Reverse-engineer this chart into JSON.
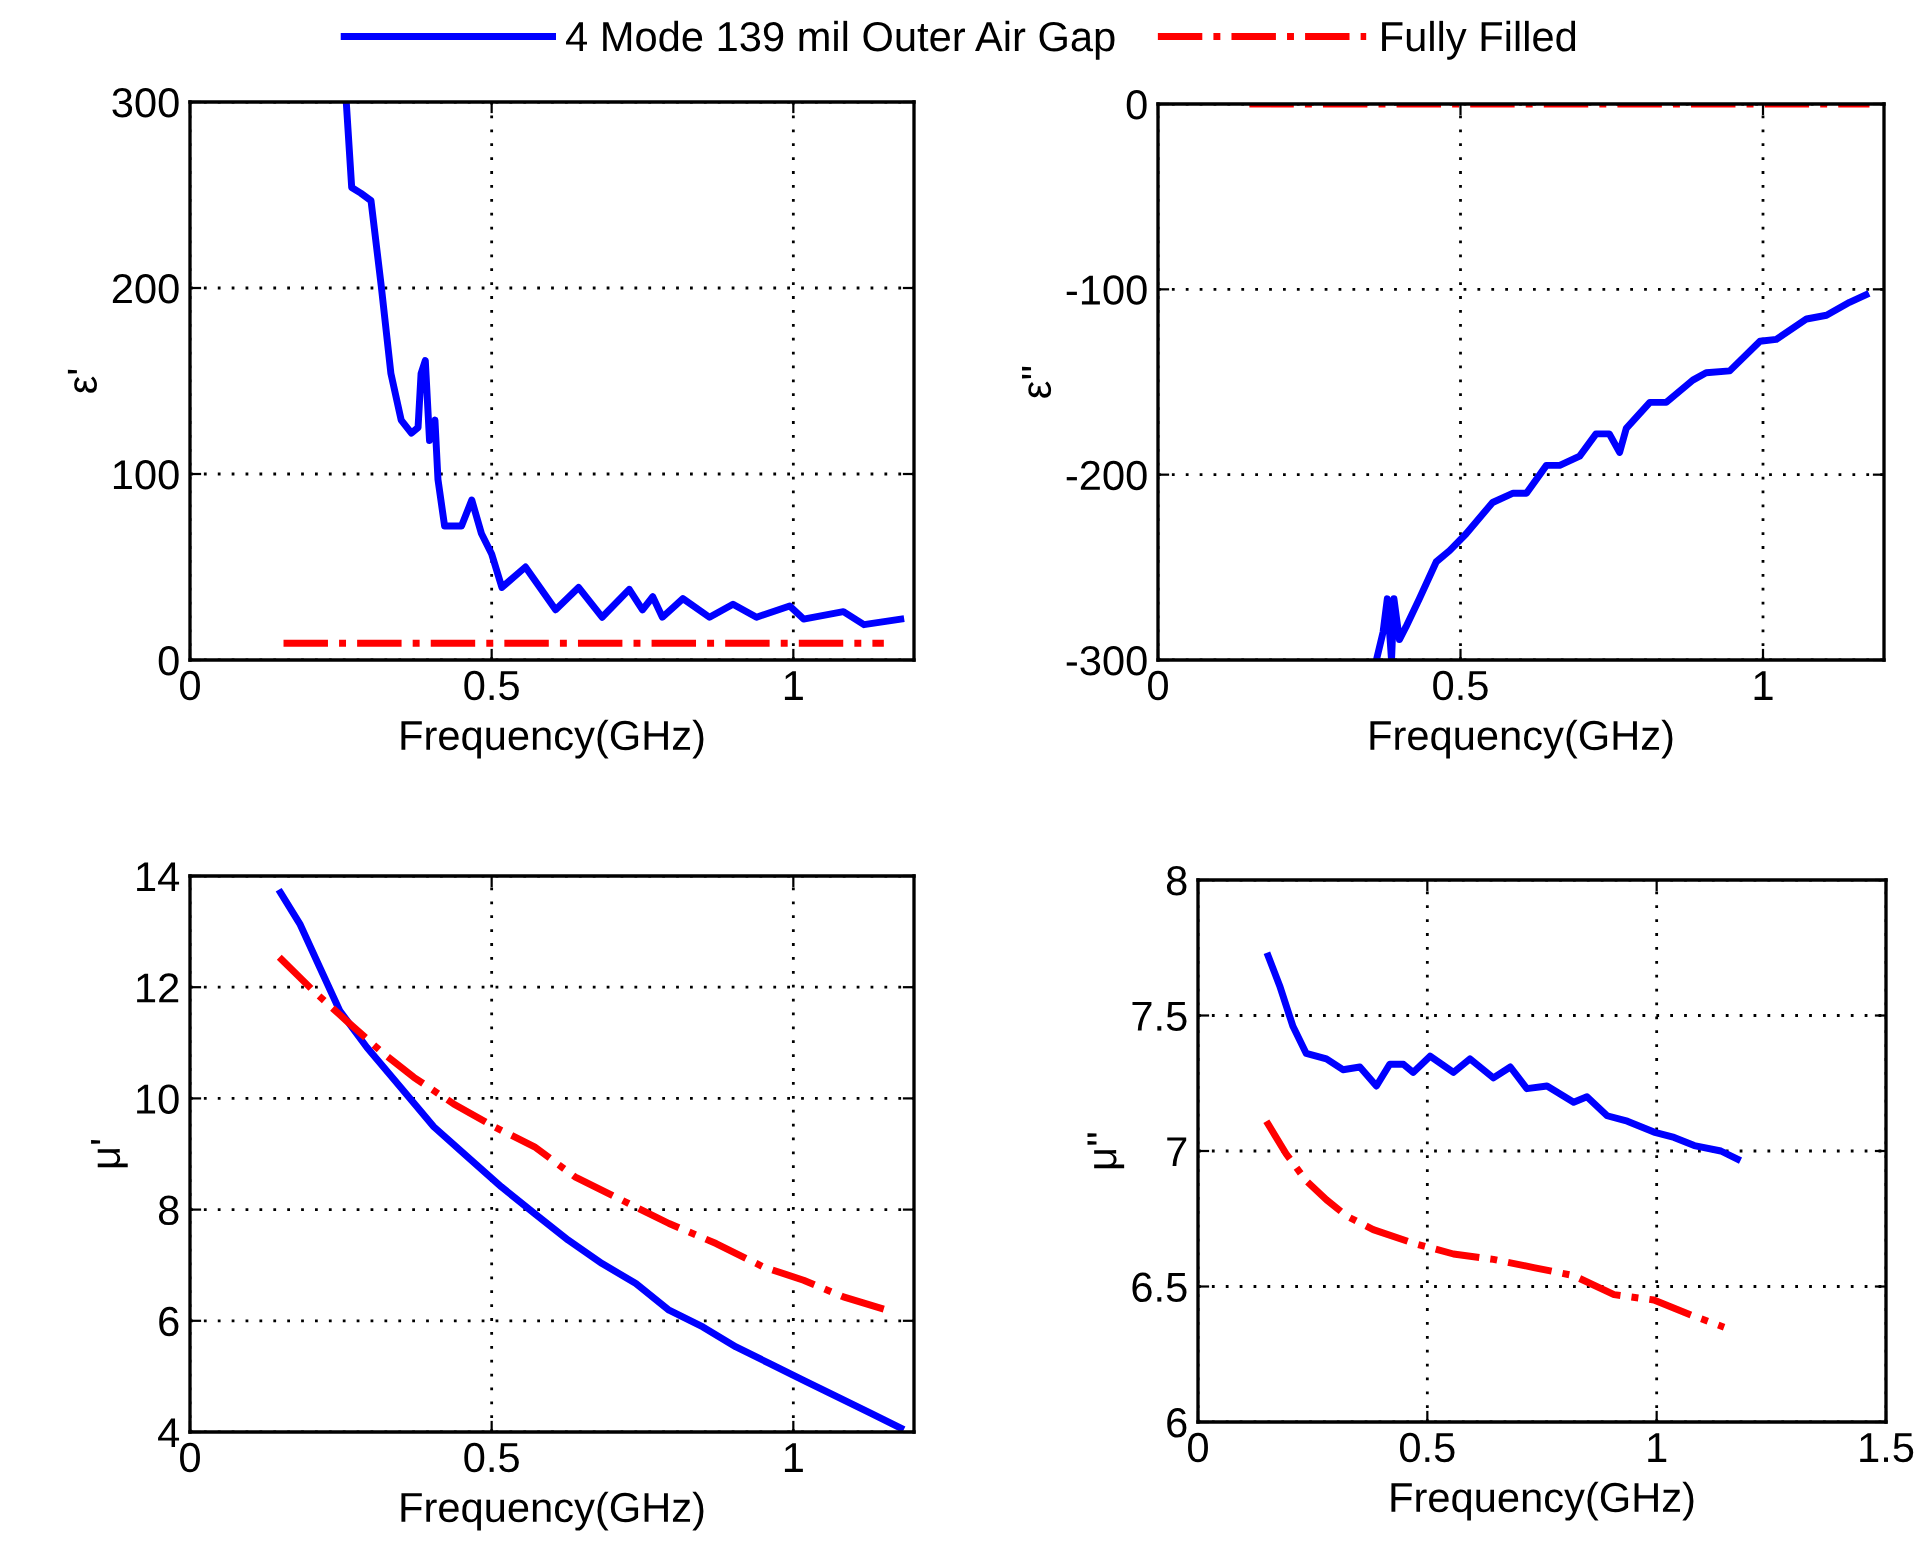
{
  "chart_data": [
    {
      "type": "line",
      "xlabel": "Frequency(GHz)",
      "ylabel": "ε'",
      "xlim": [
        0,
        1.2
      ],
      "xticks": [
        0,
        0.5,
        1
      ],
      "ylim": [
        0,
        300
      ],
      "yticks": [
        0,
        100,
        200,
        300
      ],
      "grid": true,
      "legend": "top",
      "series": [
        {
          "name": "4 Mode 139 mil Outer Air Gap",
          "color": "#0000ff",
          "line_style": "solid",
          "x": [
            0.259,
            0.268,
            0.283,
            0.3,
            0.317,
            0.333,
            0.35,
            0.367,
            0.378,
            0.383,
            0.39,
            0.397,
            0.406,
            0.411,
            0.422,
            0.45,
            0.467,
            0.483,
            0.5,
            0.517,
            0.556,
            0.606,
            0.644,
            0.683,
            0.728,
            0.75,
            0.767,
            0.783,
            0.817,
            0.861,
            0.9,
            0.939,
            0.994,
            1.017,
            1.083,
            1.117,
            1.178
          ],
          "values": [
            300,
            254,
            251,
            247,
            201,
            154,
            129,
            122,
            125,
            154,
            161,
            118,
            129,
            97,
            72,
            72,
            86,
            68,
            57,
            39,
            50,
            27,
            39,
            23,
            38,
            27,
            34,
            23,
            33,
            23,
            30,
            23,
            29,
            22,
            26,
            19,
            22
          ]
        },
        {
          "name": "Fully Filled",
          "color": "#ff0000",
          "line_style": "dashdot",
          "x": [
            0.155,
            1.15
          ],
          "values": [
            9,
            9
          ]
        }
      ]
    },
    {
      "type": "line",
      "xlabel": "Frequency(GHz)",
      "ylabel": "ε''",
      "xlim": [
        0,
        1.2
      ],
      "xticks": [
        0,
        0.5,
        1
      ],
      "ylim": [
        -300,
        0
      ],
      "yticks": [
        -300,
        -200,
        -100,
        0
      ],
      "grid": true,
      "series": [
        {
          "color": "#0000ff",
          "line_style": "solid",
          "x": [
            0.361,
            0.372,
            0.379,
            0.386,
            0.39,
            0.399,
            0.41,
            0.432,
            0.46,
            0.482,
            0.509,
            0.553,
            0.587,
            0.609,
            0.642,
            0.664,
            0.697,
            0.724,
            0.746,
            0.763,
            0.774,
            0.813,
            0.84,
            0.884,
            0.906,
            0.945,
            0.995,
            1.022,
            1.072,
            1.105,
            1.143,
            1.17
          ],
          "values": [
            -300,
            -285,
            -267,
            -300,
            -267,
            -289,
            -282,
            -267,
            -247,
            -241,
            -232,
            -215,
            -210,
            -210,
            -195,
            -195,
            -190,
            -178,
            -178,
            -188,
            -175,
            -161,
            -161,
            -149,
            -145,
            -144,
            -128,
            -127,
            -116,
            -114,
            -107,
            -103
          ]
        },
        {
          "color": "#ff0000",
          "line_style": "dashdot",
          "x": [
            0.151,
            1.176
          ],
          "values": [
            0,
            0
          ]
        }
      ]
    },
    {
      "type": "line",
      "xlabel": "Frequency(GHz)",
      "ylabel": "μ'",
      "xlim": [
        0,
        1.2
      ],
      "xticks": [
        0,
        0.5,
        1
      ],
      "ylim": [
        4,
        14
      ],
      "yticks": [
        4,
        6,
        8,
        10,
        12,
        14
      ],
      "grid": true,
      "series": [
        {
          "color": "#0000ff",
          "line_style": "solid",
          "x": [
            0.15,
            0.182,
            0.215,
            0.248,
            0.293,
            0.349,
            0.404,
            0.46,
            0.516,
            0.571,
            0.627,
            0.683,
            0.739,
            0.794,
            0.85,
            0.905,
            0.961,
            1.017,
            1.073,
            1.128,
            1.178
          ],
          "values": [
            13.7,
            13.14,
            12.36,
            11.58,
            10.92,
            10.2,
            9.49,
            8.95,
            8.41,
            7.93,
            7.45,
            7.03,
            6.67,
            6.19,
            5.89,
            5.53,
            5.23,
            4.93,
            4.63,
            4.34,
            4.07
          ]
        },
        {
          "color": "#ff0000",
          "line_style": "dashdot",
          "x": [
            0.148,
            0.204,
            0.259,
            0.315,
            0.371,
            0.437,
            0.504,
            0.571,
            0.638,
            0.716,
            0.794,
            0.872,
            0.95,
            1.017,
            1.083,
            1.156
          ],
          "values": [
            12.54,
            11.94,
            11.4,
            10.86,
            10.38,
            9.9,
            9.49,
            9.13,
            8.59,
            8.17,
            7.75,
            7.39,
            6.97,
            6.73,
            6.43,
            6.19
          ]
        }
      ]
    },
    {
      "type": "line",
      "xlabel": "Frequency(GHz)",
      "ylabel": "μ''",
      "xlim": [
        0,
        1.5
      ],
      "xticks": [
        0,
        0.5,
        1,
        1.5
      ],
      "ylim": [
        6,
        8
      ],
      "yticks": [
        6,
        6.5,
        7,
        7.5,
        8
      ],
      "grid": true,
      "series": [
        {
          "color": "#0000ff",
          "line_style": "solid",
          "x": [
            0.153,
            0.178,
            0.207,
            0.236,
            0.28,
            0.316,
            0.353,
            0.389,
            0.418,
            0.448,
            0.469,
            0.506,
            0.557,
            0.593,
            0.644,
            0.681,
            0.717,
            0.761,
            0.819,
            0.848,
            0.892,
            0.936,
            0.994,
            1.038,
            1.082,
            1.14,
            1.176
          ],
          "values": [
            7.72,
            7.61,
            7.46,
            7.36,
            7.34,
            7.3,
            7.31,
            7.24,
            7.32,
            7.32,
            7.29,
            7.35,
            7.29,
            7.34,
            7.27,
            7.31,
            7.23,
            7.24,
            7.18,
            7.2,
            7.13,
            7.11,
            7.07,
            7.05,
            7.02,
            7.0,
            6.97
          ]
        },
        {
          "color": "#ff0000",
          "line_style": "dashdot",
          "x": [
            0.149,
            0.192,
            0.236,
            0.28,
            0.324,
            0.382,
            0.469,
            0.557,
            0.644,
            0.732,
            0.819,
            0.907,
            0.994,
            1.082,
            1.147
          ],
          "values": [
            7.11,
            6.99,
            6.89,
            6.82,
            6.76,
            6.71,
            6.66,
            6.62,
            6.6,
            6.57,
            6.54,
            6.47,
            6.45,
            6.39,
            6.35
          ]
        }
      ]
    }
  ]
}
